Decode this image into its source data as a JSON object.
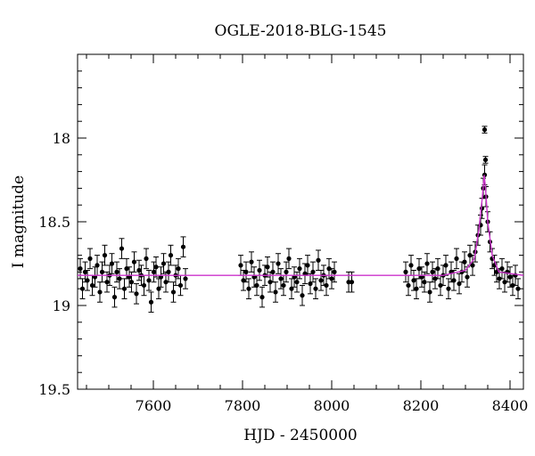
{
  "chart_data": {
    "type": "scatter",
    "title": "OGLE-2018-BLG-1545",
    "xlabel": "HJD - 2450000",
    "ylabel": "I magnitude",
    "xlim": [
      7430,
      8430
    ],
    "ylim": [
      19.5,
      17.5
    ],
    "y_inverted": true,
    "x_ticks": [
      7600,
      7800,
      8000,
      8200,
      8400
    ],
    "y_ticks": [
      18,
      18.5,
      19,
      19.5
    ],
    "x_tick_labels": [
      "7600",
      "7800",
      "8000",
      "8200",
      "8400"
    ],
    "y_tick_labels": [
      "18",
      "18.5",
      "19",
      "19.5"
    ],
    "grid": false,
    "colors": {
      "points": "#000000",
      "model": "#cc33cc"
    },
    "model": {
      "baseline": 18.82,
      "x": [
        7430,
        8150,
        8250,
        8300,
        8320,
        8330,
        8338,
        8342,
        8345,
        8350,
        8360,
        8375,
        8430
      ],
      "y": [
        18.82,
        18.82,
        18.82,
        18.79,
        18.72,
        18.55,
        18.35,
        18.22,
        18.3,
        18.5,
        18.7,
        18.8,
        18.82
      ]
    },
    "series": [
      {
        "x": [
          7436,
          7441,
          7447,
          7452,
          7458,
          7463,
          7469,
          7474,
          7480,
          7485,
          7491,
          7496,
          7502,
          7507,
          7513,
          7518,
          7524,
          7529,
          7535,
          7540,
          7546,
          7551,
          7557,
          7562,
          7568,
          7573,
          7579,
          7584,
          7590,
          7595,
          7601,
          7606,
          7612,
          7617,
          7623,
          7628,
          7634,
          7639,
          7645,
          7650,
          7656,
          7661,
          7667,
          7672,
          7796,
          7802,
          7808,
          7814,
          7820,
          7826,
          7832,
          7838,
          7844,
          7850,
          7856,
          7862,
          7868,
          7874,
          7880,
          7886,
          7892,
          7898,
          7904,
          7910,
          7916,
          7922,
          7928,
          7934,
          7940,
          7946,
          7952,
          7958,
          7964,
          7970,
          7976,
          7982,
          7988,
          7994,
          8000,
          8006,
          8038,
          8045,
          8166,
          8172,
          8178,
          8184,
          8190,
          8196,
          8202,
          8208,
          8214,
          8220,
          8226,
          8232,
          8238,
          8244,
          8250,
          8256,
          8262,
          8268,
          8274,
          8280,
          8286,
          8292,
          8298,
          8304,
          8310,
          8316,
          8322,
          8328,
          8334,
          8337,
          8340,
          8343,
          8346,
          8350,
          8355,
          8360,
          8365,
          8370,
          8376,
          8382,
          8388,
          8394,
          8400,
          8406,
          8412,
          8418
        ],
        "y": [
          18.78,
          18.9,
          18.8,
          18.85,
          18.72,
          18.88,
          18.83,
          18.76,
          18.92,
          18.8,
          18.7,
          18.86,
          18.82,
          18.75,
          18.95,
          18.8,
          18.84,
          18.66,
          18.9,
          18.78,
          18.83,
          18.86,
          18.74,
          18.93,
          18.79,
          18.82,
          18.88,
          18.72,
          18.85,
          18.98,
          18.8,
          18.77,
          18.9,
          18.83,
          18.75,
          18.86,
          18.8,
          18.7,
          18.92,
          18.82,
          18.78,
          18.88,
          18.65,
          18.84,
          18.76,
          18.85,
          18.8,
          18.9,
          18.74,
          18.83,
          18.88,
          18.79,
          18.95,
          18.82,
          18.77,
          18.86,
          18.8,
          18.92,
          18.75,
          18.84,
          18.88,
          18.8,
          18.72,
          18.9,
          18.83,
          18.86,
          18.78,
          18.94,
          18.81,
          18.76,
          18.87,
          18.8,
          18.9,
          18.73,
          18.85,
          18.82,
          18.88,
          18.78,
          18.84,
          18.8,
          18.86,
          18.86,
          18.8,
          18.88,
          18.76,
          18.85,
          18.9,
          18.78,
          18.83,
          18.86,
          18.75,
          18.92,
          18.8,
          18.84,
          18.78,
          18.88,
          18.82,
          18.76,
          18.9,
          18.8,
          18.85,
          18.72,
          18.87,
          18.8,
          18.74,
          18.83,
          18.7,
          18.76,
          18.68,
          18.58,
          18.52,
          18.42,
          18.3,
          18.22,
          18.35,
          18.5,
          18.62,
          18.72,
          18.76,
          18.8,
          18.84,
          18.78,
          18.86,
          18.8,
          18.83,
          18.88,
          18.82,
          18.9
        ],
        "err": 0.06
      },
      {
        "x": [
          8343,
          8345
        ],
        "y": [
          17.95,
          18.13
        ],
        "err": 0.02
      }
    ]
  }
}
